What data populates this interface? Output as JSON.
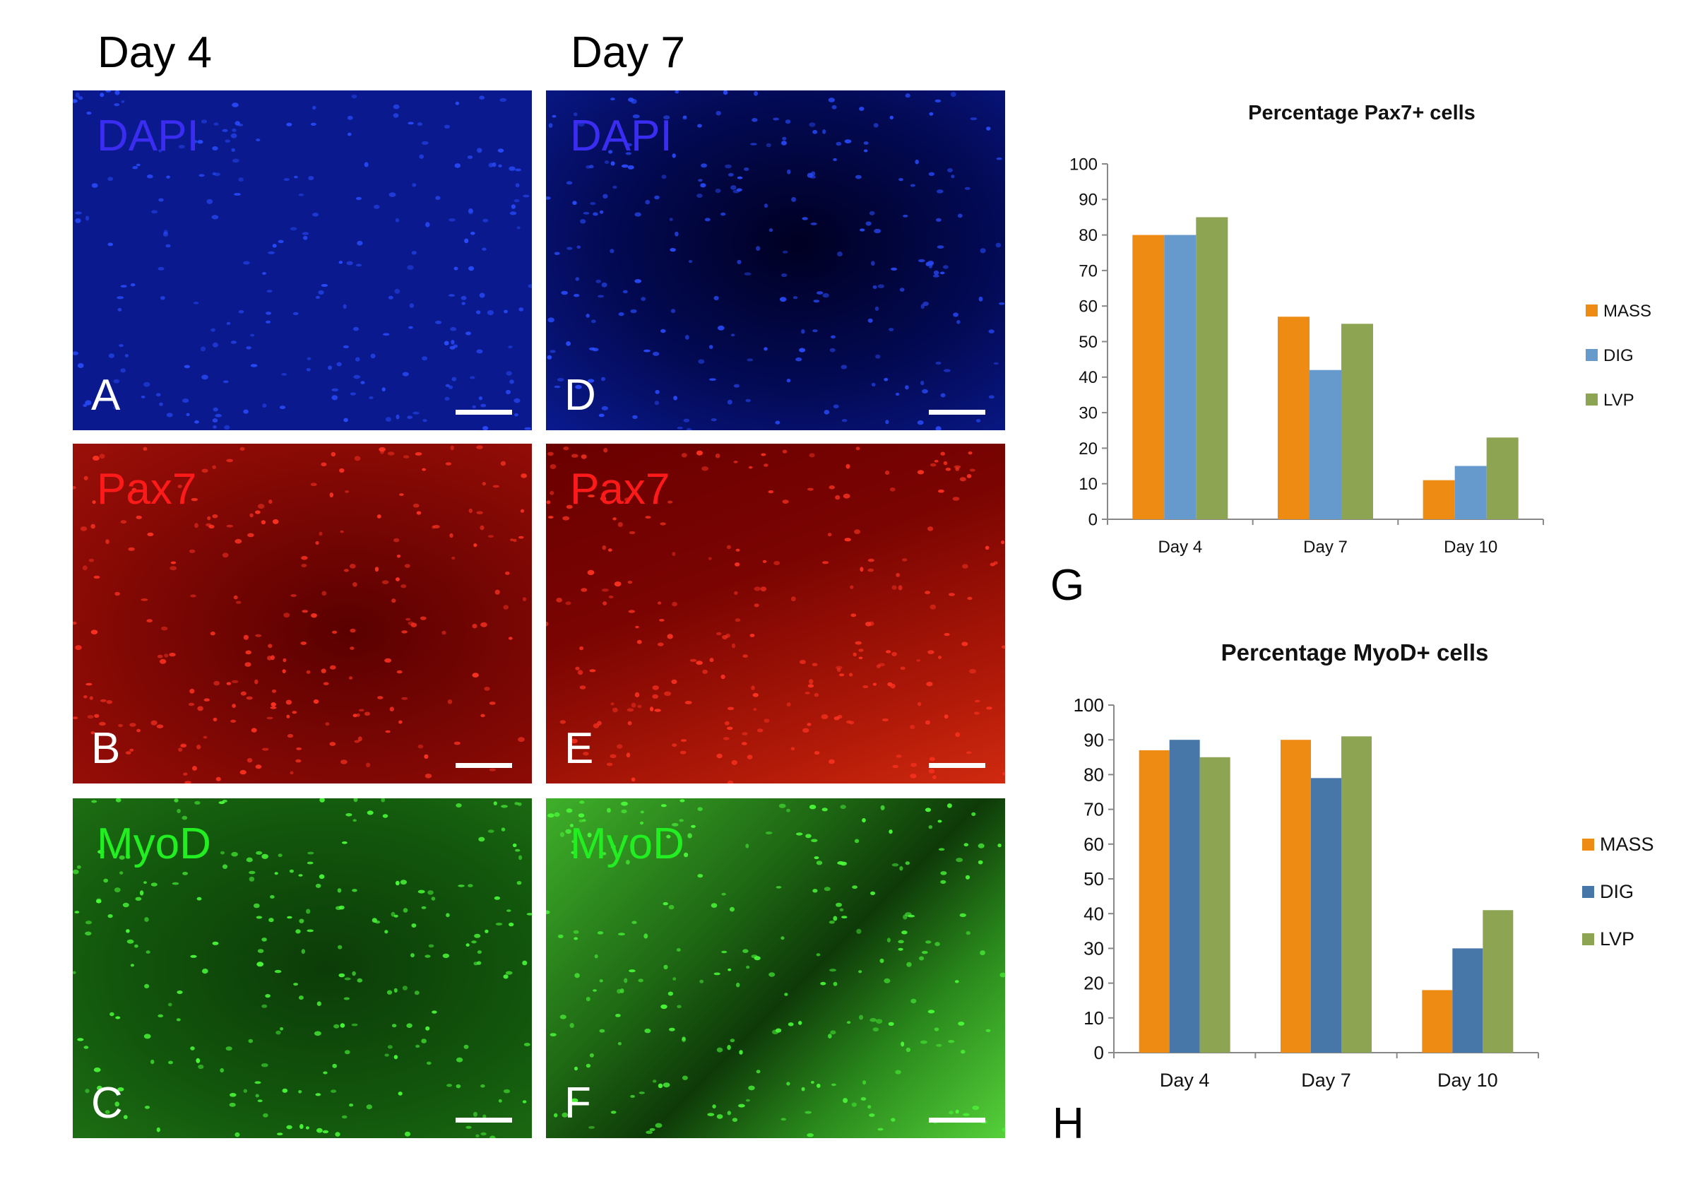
{
  "columns": {
    "left": "Day 4",
    "right": "Day 7"
  },
  "panels": [
    {
      "label": "A",
      "stain": "DAPI"
    },
    {
      "label": "D",
      "stain": "DAPI"
    },
    {
      "label": "B",
      "stain": "Pax7"
    },
    {
      "label": "E",
      "stain": "Pax7"
    },
    {
      "label": "C",
      "stain": "MyoD"
    },
    {
      "label": "F",
      "stain": "MyoD"
    }
  ],
  "colors": {
    "stain_dapi": "#3a2cf0",
    "stain_pax7": "#ff1a1a",
    "stain_myod": "#22ee22",
    "mass": "#ee8b12",
    "dig_g": "#6699cc",
    "dig_h": "#4677a8",
    "lvp": "#8da452"
  },
  "chart_data": [
    {
      "type": "bar",
      "panel_label": "G",
      "title": "Percentage Pax7+ cells",
      "categories": [
        "Day 4",
        "Day 7",
        "Day 10"
      ],
      "series": [
        {
          "name": "MASS",
          "values": [
            80,
            57,
            11
          ]
        },
        {
          "name": "DIG",
          "values": [
            80,
            42,
            15
          ]
        },
        {
          "name": "LVP",
          "values": [
            85,
            55,
            23
          ]
        }
      ],
      "yticks": [
        "0",
        "10",
        "20",
        "30",
        "40",
        "50",
        "60",
        "70",
        "80",
        "90",
        "100"
      ],
      "ylim": [
        0,
        100
      ],
      "legend": "right"
    },
    {
      "type": "bar",
      "panel_label": "H",
      "title": "Percentage MyoD+ cells",
      "categories": [
        "Day 4",
        "Day 7",
        "Day 10"
      ],
      "series": [
        {
          "name": "MASS",
          "values": [
            87,
            90,
            18
          ]
        },
        {
          "name": "DIG",
          "values": [
            90,
            79,
            30
          ]
        },
        {
          "name": "LVP",
          "values": [
            85,
            91,
            41
          ]
        }
      ],
      "yticks": [
        "0",
        "10",
        "20",
        "30",
        "40",
        "50",
        "60",
        "70",
        "80",
        "90",
        "100"
      ],
      "ylim": [
        0,
        100
      ],
      "legend": "right"
    }
  ]
}
